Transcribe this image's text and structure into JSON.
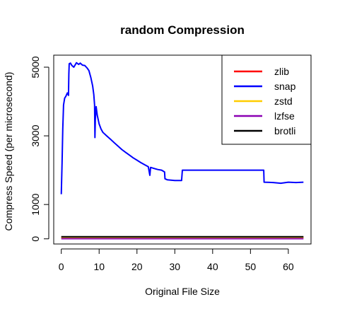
{
  "chart_data": {
    "type": "line",
    "title": "random Compression",
    "xlabel": "Original File Size",
    "ylabel": "Compress Speed (per microsecond)",
    "xlim": [
      -2,
      66
    ],
    "ylim": [
      -150,
      5350
    ],
    "x_ticks": [
      0,
      10,
      20,
      30,
      40,
      50,
      60
    ],
    "y_ticks": [
      0,
      1000,
      3000,
      5000
    ],
    "legend_position": "top-right",
    "series": [
      {
        "name": "zlib",
        "color": "#ff0000",
        "points": [
          [
            0,
            40
          ],
          [
            64,
            40
          ]
        ]
      },
      {
        "name": "snap",
        "color": "#0000ff",
        "points": [
          [
            0.0,
            1300
          ],
          [
            0.2,
            2200
          ],
          [
            0.4,
            3200
          ],
          [
            0.6,
            3900
          ],
          [
            0.9,
            4100
          ],
          [
            1.2,
            4150
          ],
          [
            1.6,
            4250
          ],
          [
            1.9,
            4180
          ],
          [
            2.0,
            4800
          ],
          [
            2.1,
            5100
          ],
          [
            2.4,
            5120
          ],
          [
            2.8,
            5050
          ],
          [
            3.3,
            5000
          ],
          [
            4.0,
            5130
          ],
          [
            4.6,
            5080
          ],
          [
            5.0,
            5120
          ],
          [
            5.6,
            5060
          ],
          [
            6.2,
            5050
          ],
          [
            6.8,
            4980
          ],
          [
            7.3,
            4900
          ],
          [
            7.8,
            4700
          ],
          [
            8.3,
            4450
          ],
          [
            8.6,
            4200
          ],
          [
            8.8,
            3900
          ],
          [
            8.9,
            2950
          ],
          [
            9.0,
            3500
          ],
          [
            9.2,
            3850
          ],
          [
            9.5,
            3600
          ],
          [
            10.0,
            3350
          ],
          [
            10.5,
            3200
          ],
          [
            11.0,
            3100
          ],
          [
            12.0,
            3000
          ],
          [
            13.0,
            2900
          ],
          [
            14.0,
            2800
          ],
          [
            15.0,
            2700
          ],
          [
            16.0,
            2600
          ],
          [
            17.0,
            2520
          ],
          [
            18.0,
            2440
          ],
          [
            19.0,
            2360
          ],
          [
            20.0,
            2290
          ],
          [
            21.0,
            2220
          ],
          [
            22.0,
            2160
          ],
          [
            23.0,
            2100
          ],
          [
            23.4,
            1850
          ],
          [
            23.6,
            2080
          ],
          [
            24.5,
            2050
          ],
          [
            25.5,
            2020
          ],
          [
            26.5,
            2000
          ],
          [
            27.3,
            1950
          ],
          [
            27.4,
            1750
          ],
          [
            28.0,
            1720
          ],
          [
            30.0,
            1700
          ],
          [
            31.8,
            1700
          ],
          [
            32.0,
            2000
          ],
          [
            40.0,
            2000
          ],
          [
            50.0,
            2000
          ],
          [
            53.5,
            2000
          ],
          [
            53.6,
            1650
          ],
          [
            56.0,
            1640
          ],
          [
            58.0,
            1620
          ],
          [
            60.0,
            1650
          ],
          [
            62.0,
            1640
          ],
          [
            64.0,
            1650
          ]
        ]
      },
      {
        "name": "zstd",
        "color": "#ffcc00",
        "points": [
          [
            0,
            25
          ],
          [
            64,
            25
          ]
        ]
      },
      {
        "name": "lzfse",
        "color": "#8b00b3",
        "points": [
          [
            0,
            5
          ],
          [
            64,
            5
          ]
        ]
      },
      {
        "name": "brotli",
        "color": "#000000",
        "points": [
          [
            0,
            60
          ],
          [
            64,
            60
          ]
        ]
      }
    ]
  }
}
